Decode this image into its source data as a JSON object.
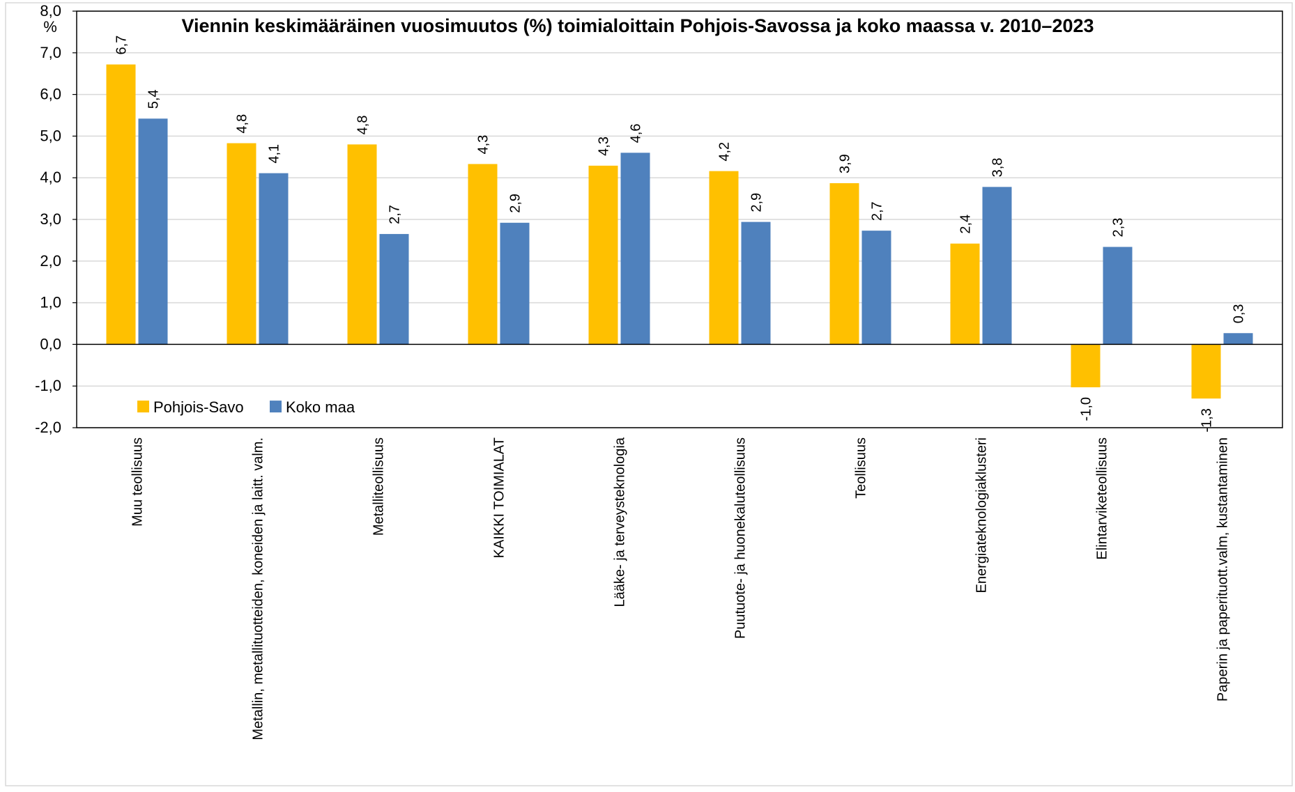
{
  "chart_data": {
    "type": "bar",
    "title": "Viennin keskimääräinen vuosimuutos (%) toimialoittain Pohjois-Savossa ja koko maassa v. 2010–2023",
    "ylabel": "%",
    "xlabel": "",
    "ylim": [
      -2.0,
      8.0
    ],
    "ytick_step": 1.0,
    "yticks": [
      "-2,0",
      "-1,0",
      "0,0",
      "1,0",
      "2,0",
      "3,0",
      "4,0",
      "5,0",
      "6,0",
      "7,0",
      "8,0"
    ],
    "grid": true,
    "legend_position": "bottom-left",
    "categories": [
      "Muu teollisuus",
      "Metallin, metallituotteiden, koneiden ja laitt. valm.",
      "Metalliteollisuus",
      "KAIKKI TOIMIALAT",
      "Lääke- ja terveysteknologia",
      "Puutuote- ja huonekaluteollisuus",
      "Teollisuus",
      "Energiateknologiaklusteri",
      "Elintarviketeollisuus",
      "Paperin ja paperituott.valm, kustantaminen"
    ],
    "series": [
      {
        "name": "Pohjois-Savo",
        "color": "#FFC000",
        "values": [
          6.72,
          4.83,
          4.8,
          4.33,
          4.29,
          4.16,
          3.87,
          2.42,
          -1.03,
          -1.3
        ],
        "labels": [
          "6,7",
          "4,8",
          "4,8",
          "4,3",
          "4,3",
          "4,2",
          "3,9",
          "2,4",
          "-1,0",
          "-1,3"
        ]
      },
      {
        "name": "Koko maa",
        "color": "#4F81BD",
        "values": [
          5.42,
          4.11,
          2.65,
          2.92,
          4.6,
          2.94,
          2.73,
          3.78,
          2.34,
          0.27
        ],
        "labels": [
          "5,4",
          "4,1",
          "2,7",
          "2,9",
          "4,6",
          "2,9",
          "2,7",
          "3,8",
          "2,3",
          "0,3"
        ]
      }
    ]
  }
}
